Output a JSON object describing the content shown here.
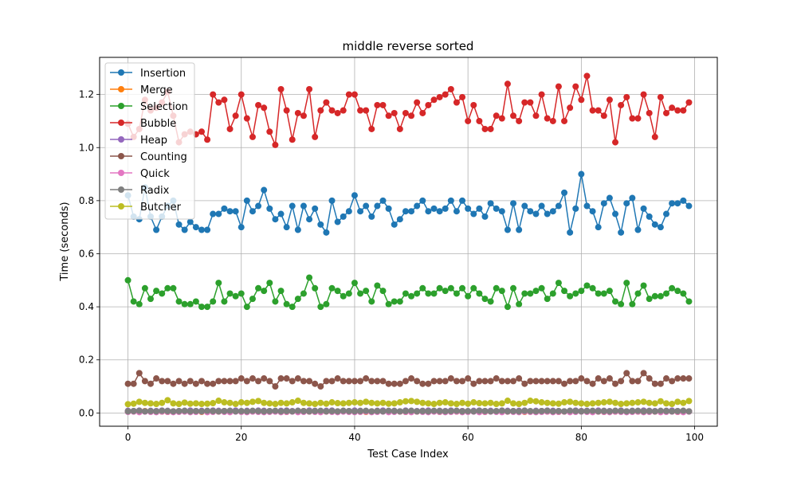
{
  "chart_data": {
    "type": "line",
    "title": "middle reverse sorted",
    "xlabel": "Test Case Index",
    "ylabel": "Time (seconds)",
    "xlim": [
      -5,
      104
    ],
    "ylim": [
      -0.05,
      1.34
    ],
    "x_ticks": [
      0,
      20,
      40,
      60,
      80,
      100
    ],
    "y_ticks": [
      0.0,
      0.2,
      0.4,
      0.6,
      0.8,
      1.0,
      1.2
    ],
    "grid": true,
    "legend_position": "top-left",
    "series": [
      {
        "name": "Insertion",
        "color": "#1f77b4",
        "values": [
          0.82,
          0.74,
          0.73,
          0.85,
          0.74,
          0.69,
          0.74,
          0.78,
          0.8,
          0.71,
          0.69,
          0.72,
          0.7,
          0.69,
          0.69,
          0.75,
          0.75,
          0.77,
          0.76,
          0.76,
          0.7,
          0.8,
          0.76,
          0.78,
          0.84,
          0.77,
          0.73,
          0.75,
          0.7,
          0.78,
          0.69,
          0.78,
          0.73,
          0.77,
          0.71,
          0.68,
          0.8,
          0.72,
          0.74,
          0.76,
          0.82,
          0.76,
          0.78,
          0.74,
          0.78,
          0.8,
          0.77,
          0.71,
          0.73,
          0.76,
          0.76,
          0.78,
          0.8,
          0.76,
          0.77,
          0.76,
          0.77,
          0.8,
          0.76,
          0.8,
          0.77,
          0.75,
          0.77,
          0.74,
          0.79,
          0.77,
          0.76,
          0.69,
          0.79,
          0.69,
          0.78,
          0.76,
          0.75,
          0.78,
          0.75,
          0.76,
          0.78,
          0.83,
          0.68,
          0.77,
          0.9,
          0.78,
          0.76,
          0.7,
          0.79,
          0.81,
          0.75,
          0.68,
          0.79,
          0.81,
          0.69,
          0.77,
          0.74,
          0.71,
          0.7,
          0.75,
          0.79,
          0.79,
          0.8,
          0.78
        ]
      },
      {
        "name": "Merge",
        "color": "#ff7f0e",
        "values": [
          0.005,
          0.006,
          0.004,
          0.007,
          0.005,
          0.006,
          0.005,
          0.004,
          0.006,
          0.005,
          0.007,
          0.005,
          0.006,
          0.004,
          0.005,
          0.006,
          0.005,
          0.007,
          0.005,
          0.006,
          0.005,
          0.004,
          0.006,
          0.005,
          0.007,
          0.005,
          0.006,
          0.005,
          0.004,
          0.006,
          0.005,
          0.007,
          0.005,
          0.006,
          0.004,
          0.005,
          0.006,
          0.005,
          0.007,
          0.005,
          0.006,
          0.005,
          0.004,
          0.006,
          0.005,
          0.007,
          0.005,
          0.006,
          0.005,
          0.004,
          0.006,
          0.005,
          0.007,
          0.005,
          0.006,
          0.004,
          0.005,
          0.006,
          0.005,
          0.007,
          0.005,
          0.006,
          0.005,
          0.004,
          0.006,
          0.005,
          0.007,
          0.005,
          0.006,
          0.005,
          0.004,
          0.006,
          0.005,
          0.007,
          0.005,
          0.006,
          0.004,
          0.005,
          0.006,
          0.005,
          0.007,
          0.005,
          0.006,
          0.005,
          0.004,
          0.006,
          0.005,
          0.007,
          0.005,
          0.006,
          0.005,
          0.004,
          0.006,
          0.005,
          0.007,
          0.005,
          0.006,
          0.004,
          0.005,
          0.006
        ]
      },
      {
        "name": "Selection",
        "color": "#2ca02c",
        "values": [
          0.5,
          0.42,
          0.41,
          0.47,
          0.43,
          0.46,
          0.45,
          0.47,
          0.47,
          0.42,
          0.41,
          0.41,
          0.42,
          0.4,
          0.4,
          0.42,
          0.49,
          0.42,
          0.45,
          0.44,
          0.45,
          0.4,
          0.43,
          0.47,
          0.46,
          0.49,
          0.42,
          0.46,
          0.41,
          0.4,
          0.43,
          0.45,
          0.51,
          0.47,
          0.4,
          0.41,
          0.47,
          0.46,
          0.44,
          0.45,
          0.49,
          0.45,
          0.46,
          0.42,
          0.48,
          0.46,
          0.41,
          0.42,
          0.42,
          0.45,
          0.44,
          0.45,
          0.47,
          0.45,
          0.45,
          0.47,
          0.46,
          0.47,
          0.45,
          0.47,
          0.44,
          0.47,
          0.45,
          0.43,
          0.42,
          0.47,
          0.46,
          0.4,
          0.47,
          0.41,
          0.45,
          0.45,
          0.46,
          0.47,
          0.43,
          0.45,
          0.49,
          0.46,
          0.44,
          0.45,
          0.46,
          0.48,
          0.47,
          0.45,
          0.45,
          0.46,
          0.42,
          0.41,
          0.49,
          0.41,
          0.45,
          0.48,
          0.43,
          0.44,
          0.44,
          0.45,
          0.47,
          0.46,
          0.45,
          0.42
        ]
      },
      {
        "name": "Bubble",
        "color": "#d62728",
        "values": [
          1.09,
          1.04,
          1.07,
          1.18,
          1.14,
          1.15,
          1.17,
          1.21,
          1.12,
          1.02,
          1.05,
          1.06,
          1.05,
          1.06,
          1.03,
          1.2,
          1.17,
          1.18,
          1.07,
          1.12,
          1.2,
          1.11,
          1.04,
          1.16,
          1.15,
          1.06,
          1.01,
          1.22,
          1.14,
          1.03,
          1.13,
          1.12,
          1.22,
          1.04,
          1.14,
          1.17,
          1.14,
          1.13,
          1.14,
          1.2,
          1.2,
          1.14,
          1.14,
          1.07,
          1.16,
          1.16,
          1.12,
          1.13,
          1.07,
          1.13,
          1.12,
          1.17,
          1.13,
          1.16,
          1.18,
          1.19,
          1.2,
          1.22,
          1.17,
          1.19,
          1.1,
          1.16,
          1.1,
          1.07,
          1.07,
          1.12,
          1.11,
          1.24,
          1.12,
          1.1,
          1.17,
          1.17,
          1.12,
          1.2,
          1.11,
          1.1,
          1.23,
          1.1,
          1.15,
          1.23,
          1.18,
          1.27,
          1.14,
          1.14,
          1.12,
          1.18,
          1.02,
          1.16,
          1.19,
          1.11,
          1.11,
          1.2,
          1.13,
          1.04,
          1.19,
          1.13,
          1.15,
          1.14,
          1.14,
          1.17
        ]
      },
      {
        "name": "Heap",
        "color": "#9467bd",
        "values": [
          0.008,
          0.007,
          0.009,
          0.006,
          0.008,
          0.007,
          0.009,
          0.008,
          0.006,
          0.007,
          0.008,
          0.009,
          0.007,
          0.008,
          0.006,
          0.009,
          0.008,
          0.007,
          0.008,
          0.009,
          0.006,
          0.008,
          0.007,
          0.009,
          0.008,
          0.007,
          0.006,
          0.008,
          0.009,
          0.007,
          0.008,
          0.006,
          0.009,
          0.008,
          0.007,
          0.008,
          0.009,
          0.006,
          0.008,
          0.007,
          0.009,
          0.008,
          0.007,
          0.006,
          0.008,
          0.009,
          0.007,
          0.008,
          0.006,
          0.009,
          0.008,
          0.007,
          0.008,
          0.009,
          0.006,
          0.008,
          0.007,
          0.009,
          0.008,
          0.007,
          0.006,
          0.008,
          0.009,
          0.007,
          0.008,
          0.006,
          0.009,
          0.008,
          0.007,
          0.008,
          0.009,
          0.006,
          0.008,
          0.007,
          0.009,
          0.008,
          0.007,
          0.006,
          0.008,
          0.009,
          0.007,
          0.008,
          0.006,
          0.009,
          0.008,
          0.007,
          0.008,
          0.009,
          0.006,
          0.008,
          0.007,
          0.009,
          0.008,
          0.007,
          0.006,
          0.008,
          0.009,
          0.007,
          0.008,
          0.006
        ]
      },
      {
        "name": "Counting",
        "color": "#8c564b",
        "values": [
          0.11,
          0.11,
          0.15,
          0.12,
          0.11,
          0.13,
          0.12,
          0.12,
          0.11,
          0.12,
          0.11,
          0.12,
          0.11,
          0.12,
          0.11,
          0.11,
          0.12,
          0.12,
          0.12,
          0.12,
          0.13,
          0.12,
          0.13,
          0.12,
          0.13,
          0.12,
          0.1,
          0.13,
          0.13,
          0.12,
          0.13,
          0.12,
          0.12,
          0.11,
          0.1,
          0.12,
          0.12,
          0.13,
          0.12,
          0.12,
          0.12,
          0.12,
          0.13,
          0.12,
          0.12,
          0.12,
          0.11,
          0.11,
          0.11,
          0.12,
          0.13,
          0.12,
          0.11,
          0.11,
          0.12,
          0.12,
          0.12,
          0.13,
          0.12,
          0.12,
          0.13,
          0.11,
          0.12,
          0.12,
          0.12,
          0.13,
          0.12,
          0.12,
          0.12,
          0.13,
          0.11,
          0.12,
          0.12,
          0.12,
          0.12,
          0.12,
          0.12,
          0.11,
          0.12,
          0.12,
          0.13,
          0.12,
          0.11,
          0.13,
          0.12,
          0.13,
          0.11,
          0.12,
          0.15,
          0.12,
          0.12,
          0.15,
          0.13,
          0.11,
          0.11,
          0.13,
          0.12,
          0.13,
          0.13,
          0.13
        ]
      },
      {
        "name": "Quick",
        "color": "#e377c2",
        "values": [
          0.004,
          0.005,
          0.003,
          0.005,
          0.004,
          0.003,
          0.005,
          0.004,
          0.003,
          0.004,
          0.005,
          0.003,
          0.004,
          0.005,
          0.003,
          0.004,
          0.005,
          0.004,
          0.003,
          0.005,
          0.004,
          0.003,
          0.005,
          0.004,
          0.003,
          0.004,
          0.005,
          0.003,
          0.004,
          0.005,
          0.003,
          0.004,
          0.005,
          0.004,
          0.003,
          0.005,
          0.004,
          0.003,
          0.005,
          0.004,
          0.003,
          0.004,
          0.005,
          0.003,
          0.004,
          0.005,
          0.003,
          0.004,
          0.005,
          0.004,
          0.003,
          0.005,
          0.004,
          0.003,
          0.005,
          0.004,
          0.003,
          0.004,
          0.005,
          0.003,
          0.004,
          0.005,
          0.003,
          0.004,
          0.005,
          0.004,
          0.003,
          0.005,
          0.004,
          0.003,
          0.005,
          0.004,
          0.003,
          0.004,
          0.005,
          0.003,
          0.004,
          0.005,
          0.003,
          0.004,
          0.005,
          0.004,
          0.003,
          0.005,
          0.004,
          0.003,
          0.005,
          0.004,
          0.003,
          0.004,
          0.005,
          0.003,
          0.004,
          0.005,
          0.003,
          0.004,
          0.005,
          0.004,
          0.003,
          0.005
        ]
      },
      {
        "name": "Radix",
        "color": "#7f7f7f",
        "values": [
          0.006,
          0.007,
          0.008,
          0.006,
          0.007,
          0.006,
          0.008,
          0.007,
          0.006,
          0.007,
          0.008,
          0.006,
          0.007,
          0.006,
          0.008,
          0.007,
          0.006,
          0.007,
          0.008,
          0.006,
          0.007,
          0.006,
          0.008,
          0.007,
          0.006,
          0.007,
          0.008,
          0.006,
          0.007,
          0.006,
          0.008,
          0.007,
          0.006,
          0.007,
          0.008,
          0.006,
          0.007,
          0.006,
          0.008,
          0.007,
          0.006,
          0.007,
          0.008,
          0.006,
          0.007,
          0.006,
          0.008,
          0.007,
          0.006,
          0.007,
          0.008,
          0.006,
          0.007,
          0.006,
          0.008,
          0.007,
          0.006,
          0.007,
          0.008,
          0.006,
          0.007,
          0.006,
          0.008,
          0.007,
          0.006,
          0.007,
          0.008,
          0.006,
          0.007,
          0.006,
          0.008,
          0.007,
          0.006,
          0.007,
          0.008,
          0.006,
          0.007,
          0.006,
          0.008,
          0.007,
          0.006,
          0.007,
          0.008,
          0.006,
          0.007,
          0.006,
          0.008,
          0.007,
          0.006,
          0.007,
          0.008,
          0.006,
          0.007,
          0.006,
          0.008,
          0.007,
          0.006,
          0.007,
          0.008,
          0.006
        ]
      },
      {
        "name": "Butcher",
        "color": "#bcbd22",
        "values": [
          0.033,
          0.035,
          0.042,
          0.038,
          0.036,
          0.034,
          0.038,
          0.048,
          0.036,
          0.034,
          0.039,
          0.035,
          0.036,
          0.034,
          0.035,
          0.037,
          0.046,
          0.04,
          0.038,
          0.034,
          0.04,
          0.038,
          0.042,
          0.045,
          0.038,
          0.036,
          0.034,
          0.038,
          0.036,
          0.04,
          0.046,
          0.038,
          0.036,
          0.034,
          0.038,
          0.035,
          0.04,
          0.037,
          0.036,
          0.038,
          0.04,
          0.038,
          0.042,
          0.038,
          0.036,
          0.038,
          0.035,
          0.036,
          0.04,
          0.044,
          0.045,
          0.042,
          0.038,
          0.036,
          0.034,
          0.038,
          0.04,
          0.036,
          0.034,
          0.038,
          0.035,
          0.04,
          0.037,
          0.036,
          0.038,
          0.034,
          0.036,
          0.046,
          0.036,
          0.034,
          0.038,
          0.046,
          0.044,
          0.04,
          0.038,
          0.036,
          0.035,
          0.04,
          0.042,
          0.038,
          0.036,
          0.034,
          0.036,
          0.038,
          0.04,
          0.042,
          0.038,
          0.034,
          0.036,
          0.038,
          0.04,
          0.042,
          0.038,
          0.036,
          0.044,
          0.036,
          0.034,
          0.042,
          0.038,
          0.045
        ]
      }
    ]
  }
}
